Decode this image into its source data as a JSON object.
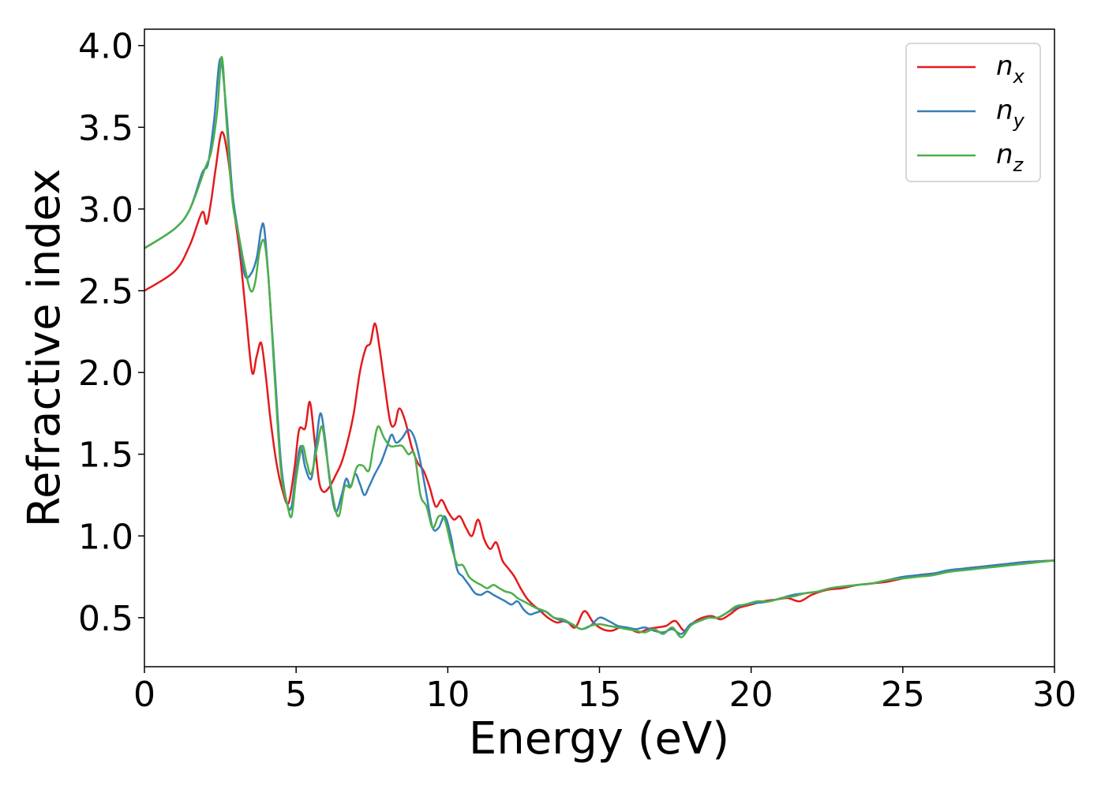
{
  "chart_data": {
    "type": "line",
    "title": "",
    "xlabel": "Energy (eV)",
    "ylabel": "Refractive index",
    "xlim": [
      0,
      30
    ],
    "ylim": [
      0.2,
      4.1
    ],
    "xticks": [
      0,
      5,
      10,
      15,
      20,
      25,
      30
    ],
    "xtick_labels": [
      "0",
      "5",
      "10",
      "15",
      "20",
      "25",
      "30"
    ],
    "yticks": [
      0.5,
      1.0,
      1.5,
      2.0,
      2.5,
      3.0,
      3.5,
      4.0
    ],
    "ytick_labels": [
      "0.5",
      "1.0",
      "1.5",
      "2.0",
      "2.5",
      "3.0",
      "3.5",
      "4.0"
    ],
    "grid": false,
    "legend_position": "top-right",
    "series": [
      {
        "name": "n_x",
        "label_main": "n",
        "label_sub": "x",
        "color": "#e41a1c",
        "x": [
          0,
          1,
          1.5,
          1.9,
          2.05,
          2.2,
          2.35,
          2.55,
          2.75,
          2.95,
          3.15,
          3.35,
          3.55,
          3.7,
          3.85,
          4.0,
          4.15,
          4.35,
          4.55,
          4.75,
          4.95,
          5.1,
          5.3,
          5.45,
          5.6,
          5.75,
          5.9,
          6.1,
          6.3,
          6.5,
          6.7,
          6.9,
          7.1,
          7.3,
          7.45,
          7.6,
          7.75,
          7.9,
          8.1,
          8.25,
          8.4,
          8.6,
          8.8,
          9.0,
          9.2,
          9.4,
          9.6,
          9.8,
          10.0,
          10.2,
          10.4,
          10.6,
          10.8,
          11.0,
          11.2,
          11.4,
          11.6,
          11.8,
          12.0,
          12.2,
          12.4,
          12.6,
          12.8,
          13.0,
          13.3,
          13.6,
          13.9,
          14.2,
          14.5,
          14.8,
          15.1,
          15.4,
          15.7,
          16.0,
          16.3,
          16.6,
          16.9,
          17.2,
          17.5,
          17.8,
          18.1,
          18.4,
          18.7,
          19.0,
          19.3,
          19.6,
          20.0,
          20.4,
          20.8,
          21.2,
          21.6,
          22.0,
          22.5,
          23.0,
          23.5,
          24.0,
          24.5,
          25.0,
          25.5,
          26.0,
          26.5,
          27.0,
          27.5,
          28.0,
          28.5,
          29.0,
          29.5,
          30.0
        ],
        "y": [
          2.5,
          2.62,
          2.78,
          2.98,
          2.91,
          3.05,
          3.25,
          3.47,
          3.32,
          3.0,
          2.72,
          2.35,
          2.0,
          2.1,
          2.18,
          1.98,
          1.72,
          1.45,
          1.28,
          1.2,
          1.42,
          1.65,
          1.66,
          1.82,
          1.6,
          1.34,
          1.27,
          1.3,
          1.37,
          1.45,
          1.58,
          1.75,
          2.0,
          2.15,
          2.18,
          2.3,
          2.15,
          1.95,
          1.7,
          1.68,
          1.78,
          1.7,
          1.55,
          1.45,
          1.4,
          1.3,
          1.18,
          1.22,
          1.15,
          1.1,
          1.12,
          1.05,
          1.0,
          1.1,
          0.98,
          0.92,
          0.96,
          0.85,
          0.8,
          0.75,
          0.68,
          0.62,
          0.58,
          0.55,
          0.5,
          0.47,
          0.48,
          0.44,
          0.54,
          0.47,
          0.43,
          0.42,
          0.44,
          0.43,
          0.41,
          0.43,
          0.44,
          0.45,
          0.48,
          0.42,
          0.47,
          0.5,
          0.51,
          0.49,
          0.52,
          0.56,
          0.58,
          0.6,
          0.61,
          0.62,
          0.6,
          0.64,
          0.67,
          0.68,
          0.7,
          0.71,
          0.72,
          0.74,
          0.76,
          0.77,
          0.78,
          0.8,
          0.81,
          0.82,
          0.83,
          0.84,
          0.845,
          0.85
        ]
      },
      {
        "name": "n_y",
        "label_main": "n",
        "label_sub": "y",
        "color": "#377eb8",
        "x": [
          0,
          1,
          1.5,
          1.9,
          2.1,
          2.3,
          2.5,
          2.7,
          2.9,
          3.1,
          3.3,
          3.5,
          3.7,
          3.85,
          3.95,
          4.1,
          4.3,
          4.5,
          4.7,
          4.85,
          5.0,
          5.15,
          5.3,
          5.5,
          5.65,
          5.8,
          5.95,
          6.1,
          6.3,
          6.5,
          6.65,
          6.8,
          6.95,
          7.1,
          7.25,
          7.4,
          7.6,
          7.8,
          8.0,
          8.15,
          8.3,
          8.5,
          8.7,
          8.9,
          9.1,
          9.3,
          9.5,
          9.7,
          9.9,
          10.1,
          10.3,
          10.5,
          10.7,
          10.9,
          11.1,
          11.3,
          11.5,
          11.7,
          11.9,
          12.1,
          12.3,
          12.5,
          12.7,
          12.9,
          13.2,
          13.5,
          13.8,
          14.1,
          14.4,
          14.7,
          15.0,
          15.3,
          15.6,
          15.9,
          16.2,
          16.5,
          16.8,
          17.1,
          17.4,
          17.7,
          18.0,
          18.3,
          18.6,
          18.9,
          19.2,
          19.5,
          19.8,
          20.2,
          20.6,
          21.0,
          21.4,
          21.8,
          22.2,
          22.6,
          23.0,
          23.5,
          24.0,
          24.5,
          25.0,
          25.5,
          26.0,
          26.5,
          27.0,
          27.5,
          28.0,
          28.5,
          29.0,
          29.5,
          30.0
        ],
        "y": [
          2.76,
          2.88,
          3.0,
          3.22,
          3.28,
          3.55,
          3.92,
          3.6,
          3.1,
          2.85,
          2.6,
          2.6,
          2.7,
          2.88,
          2.88,
          2.55,
          2.0,
          1.45,
          1.2,
          1.18,
          1.4,
          1.55,
          1.42,
          1.35,
          1.55,
          1.75,
          1.6,
          1.35,
          1.15,
          1.25,
          1.35,
          1.3,
          1.38,
          1.32,
          1.25,
          1.3,
          1.38,
          1.45,
          1.55,
          1.62,
          1.57,
          1.6,
          1.65,
          1.6,
          1.45,
          1.25,
          1.05,
          1.05,
          1.12,
          1.0,
          0.8,
          0.75,
          0.7,
          0.65,
          0.64,
          0.66,
          0.64,
          0.62,
          0.6,
          0.58,
          0.6,
          0.55,
          0.52,
          0.53,
          0.54,
          0.5,
          0.48,
          0.46,
          0.43,
          0.45,
          0.5,
          0.48,
          0.45,
          0.44,
          0.43,
          0.44,
          0.42,
          0.41,
          0.43,
          0.4,
          0.46,
          0.48,
          0.5,
          0.5,
          0.53,
          0.56,
          0.58,
          0.59,
          0.6,
          0.62,
          0.64,
          0.65,
          0.66,
          0.68,
          0.69,
          0.7,
          0.71,
          0.73,
          0.75,
          0.76,
          0.77,
          0.79,
          0.8,
          0.81,
          0.82,
          0.83,
          0.84,
          0.845,
          0.85
        ]
      },
      {
        "name": "n_z",
        "label_main": "n",
        "label_sub": "z",
        "color": "#4daf4a",
        "x": [
          0,
          1,
          1.5,
          2.0,
          2.2,
          2.4,
          2.55,
          2.7,
          2.9,
          3.1,
          3.3,
          3.5,
          3.65,
          3.8,
          3.95,
          4.1,
          4.3,
          4.5,
          4.7,
          4.85,
          5.0,
          5.2,
          5.35,
          5.5,
          5.7,
          5.85,
          6.0,
          6.2,
          6.4,
          6.6,
          6.8,
          7.0,
          7.2,
          7.4,
          7.55,
          7.7,
          7.9,
          8.1,
          8.3,
          8.5,
          8.7,
          8.9,
          9.1,
          9.3,
          9.5,
          9.7,
          9.9,
          10.1,
          10.3,
          10.5,
          10.7,
          10.9,
          11.1,
          11.3,
          11.5,
          11.7,
          11.9,
          12.1,
          12.3,
          12.5,
          12.7,
          12.9,
          13.2,
          13.5,
          13.8,
          14.1,
          14.4,
          14.7,
          15.0,
          15.3,
          15.6,
          15.9,
          16.2,
          16.5,
          16.8,
          17.1,
          17.4,
          17.7,
          18.0,
          18.3,
          18.6,
          18.9,
          19.2,
          19.5,
          19.8,
          20.2,
          20.6,
          21.0,
          21.4,
          21.8,
          22.2,
          22.6,
          23.0,
          23.5,
          24.0,
          24.5,
          25.0,
          25.5,
          26.0,
          26.5,
          27.0,
          27.5,
          28.0,
          28.5,
          29.0,
          29.5,
          30.0
        ],
        "y": [
          2.76,
          2.88,
          3.0,
          3.25,
          3.35,
          3.6,
          3.93,
          3.55,
          3.05,
          2.85,
          2.65,
          2.5,
          2.55,
          2.75,
          2.8,
          2.55,
          1.95,
          1.4,
          1.2,
          1.12,
          1.35,
          1.55,
          1.45,
          1.38,
          1.55,
          1.67,
          1.5,
          1.25,
          1.12,
          1.3,
          1.3,
          1.42,
          1.43,
          1.4,
          1.55,
          1.67,
          1.6,
          1.55,
          1.55,
          1.55,
          1.5,
          1.5,
          1.25,
          1.18,
          1.05,
          1.12,
          1.1,
          0.95,
          0.83,
          0.82,
          0.75,
          0.72,
          0.7,
          0.68,
          0.7,
          0.68,
          0.66,
          0.65,
          0.62,
          0.6,
          0.58,
          0.56,
          0.54,
          0.5,
          0.49,
          0.46,
          0.43,
          0.45,
          0.46,
          0.45,
          0.44,
          0.43,
          0.42,
          0.41,
          0.43,
          0.4,
          0.44,
          0.38,
          0.45,
          0.48,
          0.5,
          0.5,
          0.53,
          0.57,
          0.58,
          0.6,
          0.6,
          0.62,
          0.63,
          0.65,
          0.66,
          0.68,
          0.69,
          0.7,
          0.71,
          0.73,
          0.74,
          0.75,
          0.76,
          0.78,
          0.79,
          0.8,
          0.81,
          0.82,
          0.83,
          0.84,
          0.85
        ]
      }
    ]
  }
}
